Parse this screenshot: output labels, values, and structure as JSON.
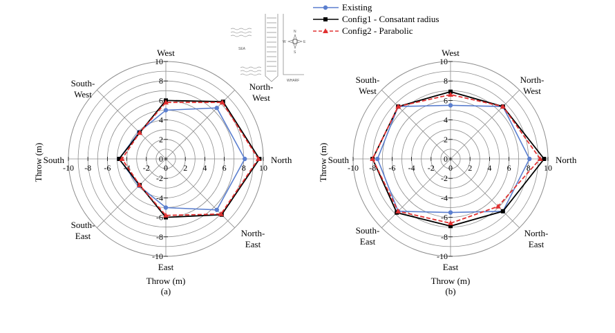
{
  "chart_data": [
    {
      "type": "radar",
      "caption": "(a)",
      "directions": [
        "North",
        "North-West",
        "West",
        "South-West",
        "South",
        "South-East",
        "East",
        "North-East"
      ],
      "rlim": [
        0,
        10
      ],
      "grid": true,
      "series": [
        {
          "name": "Existing",
          "values": [
            8.1,
            7.4,
            5.0,
            3.9,
            4.8,
            3.9,
            5.0,
            7.4
          ]
        },
        {
          "name": "Config1 - Consatant radius",
          "values": [
            9.6,
            8.3,
            6.0,
            3.8,
            4.8,
            3.8,
            6.0,
            8.1
          ]
        },
        {
          "name": "Config2 - Parabolic",
          "values": [
            9.5,
            8.2,
            5.8,
            3.8,
            4.5,
            3.8,
            5.8,
            8.0
          ]
        }
      ],
      "ticks": [
        "10",
        "8",
        "6",
        "4",
        "2",
        "0",
        "-2",
        "-4",
        "-6",
        "-8",
        "-10"
      ],
      "xticks": [
        "-10",
        "-8",
        "-6",
        "-4",
        "-2",
        "0",
        "2",
        "4",
        "6",
        "8",
        "10"
      ],
      "xlabel": "Throw (m)",
      "ylabel": "Throw (m)"
    },
    {
      "type": "radar",
      "caption": "(b)",
      "directions": [
        "North",
        "North-West",
        "West",
        "South-West",
        "South",
        "South-East",
        "East",
        "North-East"
      ],
      "rlim": [
        0,
        10
      ],
      "grid": true,
      "series": [
        {
          "name": "Existing",
          "values": [
            8.1,
            7.6,
            5.5,
            7.6,
            7.5,
            7.6,
            5.5,
            7.6
          ]
        },
        {
          "name": "Config1 - Consatant radius",
          "values": [
            9.6,
            7.6,
            6.9,
            7.6,
            8.0,
            7.8,
            6.9,
            7.6
          ]
        },
        {
          "name": "Config2 - Parabolic",
          "values": [
            9.2,
            7.6,
            6.6,
            7.6,
            8.0,
            7.6,
            6.6,
            6.9
          ]
        }
      ],
      "ticks": [
        "10",
        "8",
        "6",
        "4",
        "2",
        "0",
        "-2",
        "-4",
        "-6",
        "-8",
        "-10"
      ],
      "xticks": [
        "-10",
        "-8",
        "-6",
        "-4",
        "-2",
        "0",
        "2",
        "4",
        "6",
        "8",
        "10"
      ],
      "xlabel": "Throw (m)",
      "ylabel": "Throw (m)"
    }
  ],
  "direction_labels": {
    "North": "North",
    "North_West_1": "North-",
    "North_West_2": "West",
    "West": "West",
    "South_West_1": "South-",
    "South_West_2": "West",
    "South": "South",
    "South_East_1": "South-",
    "South_East_2": "East",
    "East": "East",
    "North_East_1": "North-",
    "North_East_2": "East"
  },
  "legend": {
    "position": "top-center",
    "items": [
      {
        "label": "Existing",
        "color": "#5b7fcf",
        "marker": "circle",
        "dash": "solid"
      },
      {
        "label": "Config1 - Consatant radius",
        "color": "#000000",
        "marker": "square",
        "dash": "solid"
      },
      {
        "label": "Config2 - Parabolic",
        "color": "#e03030",
        "marker": "triangle",
        "dash": "dashed"
      }
    ]
  },
  "inset": {
    "sea_label": "SEA",
    "wharf_label": "WHARF",
    "compass": {
      "n": "N",
      "s": "S",
      "e": "E",
      "w": "W"
    }
  },
  "colors": {
    "existing": "#5b7fcf",
    "config1": "#000000",
    "config2": "#e03030",
    "grid": "#8c8c8c"
  }
}
